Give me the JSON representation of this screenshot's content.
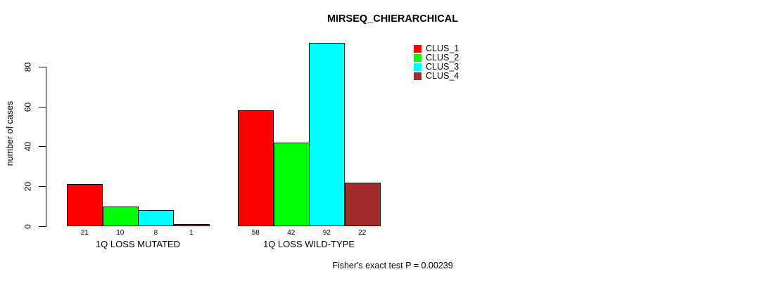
{
  "title": "MIRSEQ_CHIERARCHICAL",
  "chart_data": {
    "type": "bar",
    "title": "MIRSEQ_CHIERARCHICAL",
    "xlabel": "",
    "ylabel": "number of cases",
    "ylim": [
      0,
      92
    ],
    "yticks": [
      0,
      20,
      40,
      60,
      80
    ],
    "grid": false,
    "legend_position": "top-right",
    "bar_value_labels": true,
    "categories": [
      "1Q LOSS MUTATED",
      "1Q LOSS WILD-TYPE"
    ],
    "series": [
      {
        "name": "CLUS_1",
        "color": "#FF0000",
        "values": [
          21,
          58
        ]
      },
      {
        "name": "CLUS_2",
        "color": "#00FF00",
        "values": [
          10,
          42
        ]
      },
      {
        "name": "CLUS_3",
        "color": "#00FFFF",
        "values": [
          8,
          92
        ]
      },
      {
        "name": "CLUS_4",
        "color": "#A52A2A",
        "values": [
          1,
          22
        ]
      }
    ],
    "annotation": "Fisher's exact test P = 0.00239"
  },
  "colors": {
    "background": "#FFFFFF",
    "axis": "#000000",
    "bar_border": "#000000",
    "text": "#000000"
  }
}
